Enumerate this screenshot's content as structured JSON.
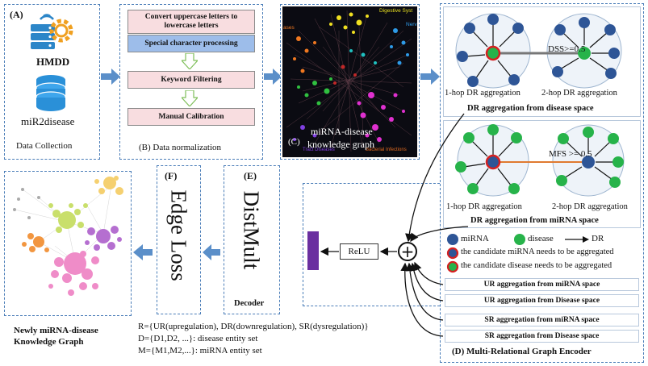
{
  "panel_a": {
    "label": "(A)",
    "source1": "HMDD",
    "source2": "miR2disease",
    "caption": "Data Collection"
  },
  "panel_b": {
    "step1": "Convert uppercase letters to lowercase letters",
    "step2": "Special character processing",
    "step3": "Keyword Filtering",
    "step4": "Manual Calibration",
    "caption": "(B)  Data normalization"
  },
  "panel_c": {
    "label": "(C)",
    "title_line1": "miRNA-disease",
    "title_line2": "knowledge graph",
    "tag_digestive": "Digestive Syst",
    "tag_nerv": "Nerv",
    "tag_ases": "ases",
    "tag_tract": "Tract Diseases",
    "tag_infections": "Bacterial Infections"
  },
  "panel_d": {
    "top_dss": "DSS>=0.5",
    "top_left_caption": "1-hop DR aggregation",
    "top_right_caption": "2-hop DR aggregation",
    "top_title": "DR aggregation from disease space",
    "mid_mfs": "MFS >= 0.5",
    "mid_left_caption": "1-hop DR aggregation",
    "mid_right_caption": "2-hop DR aggregation",
    "mid_title": "DR aggregation from miRNA space",
    "legend_mirna": "miRNA",
    "legend_disease": "disease",
    "legend_dr": "DR",
    "legend_candidate_mirna": "the candidate miRNA needs to be aggregated",
    "legend_candidate_disease": "the candidate disease needs to be aggregated",
    "ur_mirna": "UR aggregation from miRNA space",
    "ur_disease": "UR aggregation from Disease space",
    "sr_mirna": "SR aggregation from miRNA space",
    "sr_disease": "SR aggregation from Disease space",
    "caption": "(D)  Multi-Relational Graph Encoder"
  },
  "panel_e": {
    "label": "(E)",
    "title": "DistMult",
    "caption": "Decoder"
  },
  "panel_f": {
    "label": "(F)",
    "title": "Edge Loss"
  },
  "relu": "ReLU",
  "plus": "+",
  "output": {
    "line1": "Newly miRNA-disease",
    "line2": "Knowledge Graph"
  },
  "notes": {
    "r_set": "R={UR(upregulation), DR(downregulation), SR(dysregulation)}",
    "d_set": "D={D1,D2,  ...}: disease entity set",
    "m_set": "M={M1,M2,...}: miRNA entity set"
  },
  "colors": {
    "dashed_border": "#4a7db8",
    "arrow_fill": "#5b8fc9",
    "step_pink": "#f8dde0",
    "step_blue": "#9dbdea",
    "mirna_node": "#2e5596",
    "disease_node": "#27b34a",
    "candidate_ring": "#d62020",
    "mfs_line": "#e07a30",
    "relu_bar": "#6a2fa0",
    "kg_background": "#0b0b12"
  }
}
